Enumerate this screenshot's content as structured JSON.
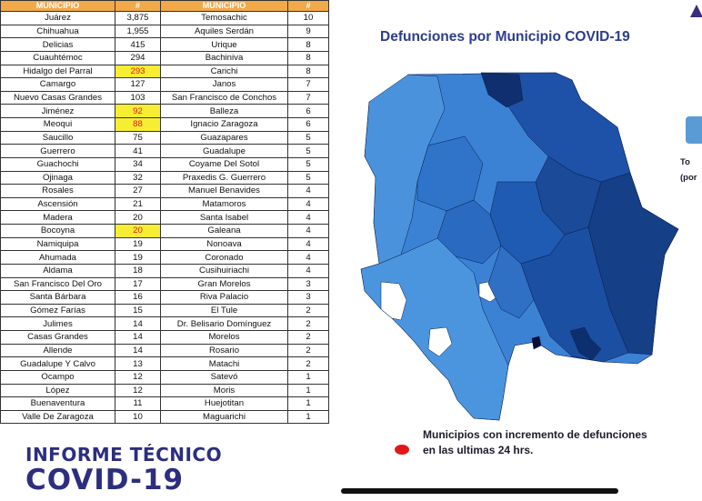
{
  "table": {
    "header": {
      "municipio": "MUNICIPIO",
      "num": "#"
    },
    "rows": [
      [
        {
          "name": "Juárez",
          "count": "3,875"
        },
        {
          "name": "Temosachic",
          "count": "10"
        }
      ],
      [
        {
          "name": "Chihuahua",
          "count": "1,955"
        },
        {
          "name": "Aquiles Serdán",
          "count": "9"
        }
      ],
      [
        {
          "name": "Delicias",
          "count": "415"
        },
        {
          "name": "Urique",
          "count": "8"
        }
      ],
      [
        {
          "name": "Cuauhtémoc",
          "count": "294"
        },
        {
          "name": "Bachiniva",
          "count": "8"
        }
      ],
      [
        {
          "name": "Hidalgo del Parral",
          "count": "293",
          "highlight": true
        },
        {
          "name": "Carichi",
          "count": "8"
        }
      ],
      [
        {
          "name": "Camargo",
          "count": "127"
        },
        {
          "name": "Janos",
          "count": "7"
        }
      ],
      [
        {
          "name": "Nuevo Casas Grandes",
          "count": "103"
        },
        {
          "name": "San Francisco de Conchos",
          "count": "7"
        }
      ],
      [
        {
          "name": "Jiménez",
          "count": "92",
          "highlight": true
        },
        {
          "name": "Balleza",
          "count": "6"
        }
      ],
      [
        {
          "name": "Meoqui",
          "count": "88",
          "highlight": true
        },
        {
          "name": "Ignacio Zaragoza",
          "count": "6"
        }
      ],
      [
        {
          "name": "Saucillo",
          "count": "75"
        },
        {
          "name": "Guazapares",
          "count": "5"
        }
      ],
      [
        {
          "name": "Guerrero",
          "count": "41"
        },
        {
          "name": "Guadalupe",
          "count": "5"
        }
      ],
      [
        {
          "name": "Guachochi",
          "count": "34"
        },
        {
          "name": "Coyame Del Sotol",
          "count": "5"
        }
      ],
      [
        {
          "name": "Ojinaga",
          "count": "32"
        },
        {
          "name": "Praxedis G. Guerrero",
          "count": "5"
        }
      ],
      [
        {
          "name": "Rosales",
          "count": "27"
        },
        {
          "name": "Manuel Benavides",
          "count": "4"
        }
      ],
      [
        {
          "name": "Ascensión",
          "count": "21"
        },
        {
          "name": "Matamoros",
          "count": "4"
        }
      ],
      [
        {
          "name": "Madera",
          "count": "20"
        },
        {
          "name": "Santa Isabel",
          "count": "4"
        }
      ],
      [
        {
          "name": "Bocoyna",
          "count": "20",
          "highlight": true
        },
        {
          "name": "Galeana",
          "count": "4"
        }
      ],
      [
        {
          "name": "Namiquipa",
          "count": "19"
        },
        {
          "name": "Nonoava",
          "count": "4"
        }
      ],
      [
        {
          "name": "Ahumada",
          "count": "19"
        },
        {
          "name": "Coronado",
          "count": "4"
        }
      ],
      [
        {
          "name": "Aldama",
          "count": "18"
        },
        {
          "name": "Cusihuiriachi",
          "count": "4"
        }
      ],
      [
        {
          "name": "San Francisco Del Oro",
          "count": "17"
        },
        {
          "name": "Gran Morelos",
          "count": "3"
        }
      ],
      [
        {
          "name": "Santa Bárbara",
          "count": "16"
        },
        {
          "name": "Riva Palacio",
          "count": "3"
        }
      ],
      [
        {
          "name": "Gómez Farías",
          "count": "15"
        },
        {
          "name": "El Tule",
          "count": "2"
        }
      ],
      [
        {
          "name": "Julimes",
          "count": "14"
        },
        {
          "name": "Dr. Belisario Domínguez",
          "count": "2"
        }
      ],
      [
        {
          "name": "Casas Grandes",
          "count": "14"
        },
        {
          "name": "Morelos",
          "count": "2"
        }
      ],
      [
        {
          "name": "Allende",
          "count": "14"
        },
        {
          "name": "Rosario",
          "count": "2"
        }
      ],
      [
        {
          "name": "Guadalupe Y Calvo",
          "count": "13"
        },
        {
          "name": "Matachi",
          "count": "2"
        }
      ],
      [
        {
          "name": "Ocampo",
          "count": "12"
        },
        {
          "name": "Satevó",
          "count": "1"
        }
      ],
      [
        {
          "name": "López",
          "count": "12"
        },
        {
          "name": "Moris",
          "count": "1"
        }
      ],
      [
        {
          "name": "Buenaventura",
          "count": "11"
        },
        {
          "name": "Huejotitan",
          "count": "1"
        }
      ],
      [
        {
          "name": "Valle De Zaragoza",
          "count": "10"
        },
        {
          "name": "Maguarichi",
          "count": "1"
        }
      ]
    ]
  },
  "brand": {
    "line1": "INFORME TÉCNICO",
    "line2": "COVID-19"
  },
  "map": {
    "title": "Defunciones por Municipio COVID-19",
    "legend_line1": "Municipios con incremento de defunciones",
    "legend_line2": "en las ultimas 24 hrs.",
    "legend_color": "#e01818",
    "shade_colors": [
      "#ffffff",
      "#4a90d8",
      "#2f74c9",
      "#1f5bb3",
      "#174893",
      "#0e2f6e",
      "#050f3a"
    ]
  },
  "side": {
    "line1": "To",
    "line2": "(por"
  },
  "colors": {
    "table_header": "#f2a94a",
    "highlight_bg": "#f7ee33",
    "highlight_text": "#e02020",
    "brand": "#2c2e7e"
  }
}
